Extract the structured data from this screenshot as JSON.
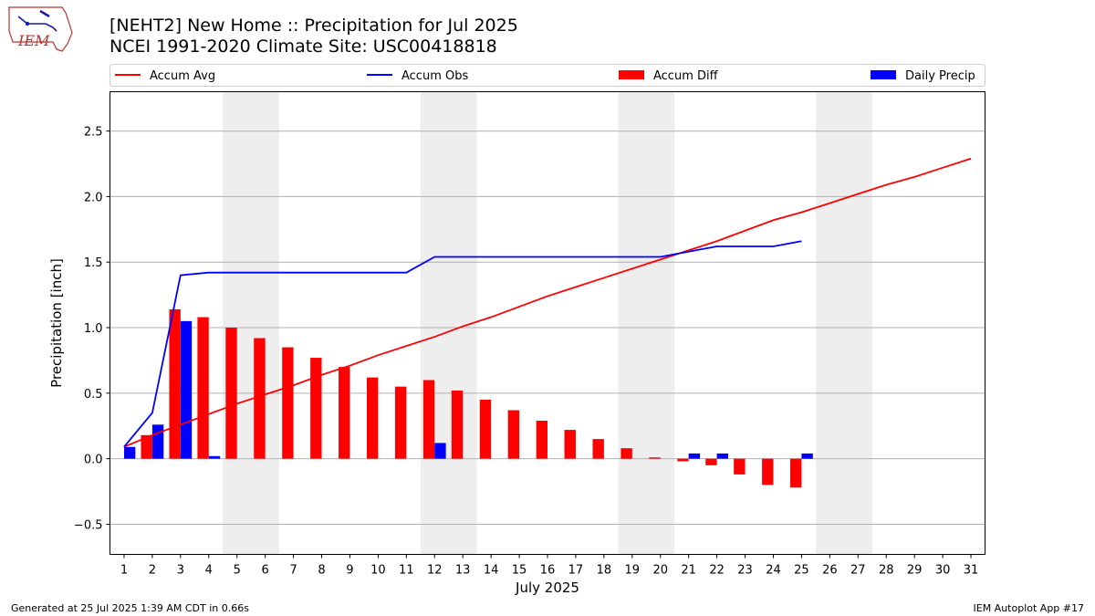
{
  "logo": {
    "text": "IEM",
    "icon": "iem-iowa-logo-icon"
  },
  "header": {
    "title": "[NEHT2] New Home :: Precipitation for Jul 2025",
    "subtitle": "NCEI 1991-2020 Climate Site: USC00418818"
  },
  "footer": {
    "generated": "Generated at 25 Jul 2025 1:39 AM CDT in 0.66s",
    "app": "IEM Autoplot App #17"
  },
  "colors": {
    "avg": "#ff0000",
    "obs": "#0000ff",
    "diff": "#ff0000",
    "daily": "#0000ff",
    "weekend": "#eeeeee",
    "grid": "#b0b0b0"
  },
  "chart_data": {
    "type": "bar",
    "xlabel": "July 2025",
    "ylabel": "Precipitation [inch]",
    "ylim": [
      -0.73,
      2.8
    ],
    "yticks": [
      -0.5,
      0.0,
      0.5,
      1.0,
      1.5,
      2.0,
      2.5
    ],
    "ytick_labels": [
      "−0.5",
      "0.0",
      "0.5",
      "1.0",
      "1.5",
      "2.0",
      "2.5"
    ],
    "grid": "horizontal",
    "legend_position": "top",
    "days": [
      1,
      2,
      3,
      4,
      5,
      6,
      7,
      8,
      9,
      10,
      11,
      12,
      13,
      14,
      15,
      16,
      17,
      18,
      19,
      20,
      21,
      22,
      23,
      24,
      25,
      26,
      27,
      28,
      29,
      30,
      31
    ],
    "weekend_spans": [
      [
        5,
        6
      ],
      [
        12,
        13
      ],
      [
        19,
        20
      ],
      [
        26,
        27
      ]
    ],
    "series": [
      {
        "name": "Accum Avg",
        "kind": "line",
        "color": "#ff0000",
        "values": [
          0.09,
          0.18,
          0.26,
          0.34,
          0.42,
          0.49,
          0.56,
          0.64,
          0.71,
          0.79,
          0.86,
          0.93,
          1.01,
          1.08,
          1.16,
          1.24,
          1.31,
          1.38,
          1.45,
          1.52,
          1.59,
          1.66,
          1.74,
          1.82,
          1.88,
          1.95,
          2.02,
          2.09,
          2.15,
          2.22,
          2.29
        ]
      },
      {
        "name": "Accum Obs",
        "kind": "line",
        "color": "#0000ff",
        "values": [
          0.09,
          0.35,
          1.4,
          1.42,
          1.42,
          1.42,
          1.42,
          1.42,
          1.42,
          1.42,
          1.42,
          1.54,
          1.54,
          1.54,
          1.54,
          1.54,
          1.54,
          1.54,
          1.54,
          1.54,
          1.58,
          1.62,
          1.62,
          1.62,
          1.66
        ]
      },
      {
        "name": "Accum Diff",
        "kind": "bar",
        "color": "#ff0000",
        "values": [
          0.0,
          0.18,
          1.14,
          1.08,
          1.0,
          0.92,
          0.85,
          0.77,
          0.7,
          0.62,
          0.55,
          0.6,
          0.52,
          0.45,
          0.37,
          0.29,
          0.22,
          0.15,
          0.08,
          0.01,
          -0.02,
          -0.05,
          -0.12,
          -0.2,
          -0.22
        ]
      },
      {
        "name": "Daily Precip",
        "kind": "bar",
        "color": "#0000ff",
        "values": [
          0.09,
          0.26,
          1.05,
          0.02,
          0,
          0,
          0,
          0,
          0,
          0,
          0,
          0.12,
          0,
          0,
          0,
          0,
          0,
          0,
          0,
          0,
          0.04,
          0.04,
          0,
          0,
          0.04
        ]
      }
    ]
  }
}
